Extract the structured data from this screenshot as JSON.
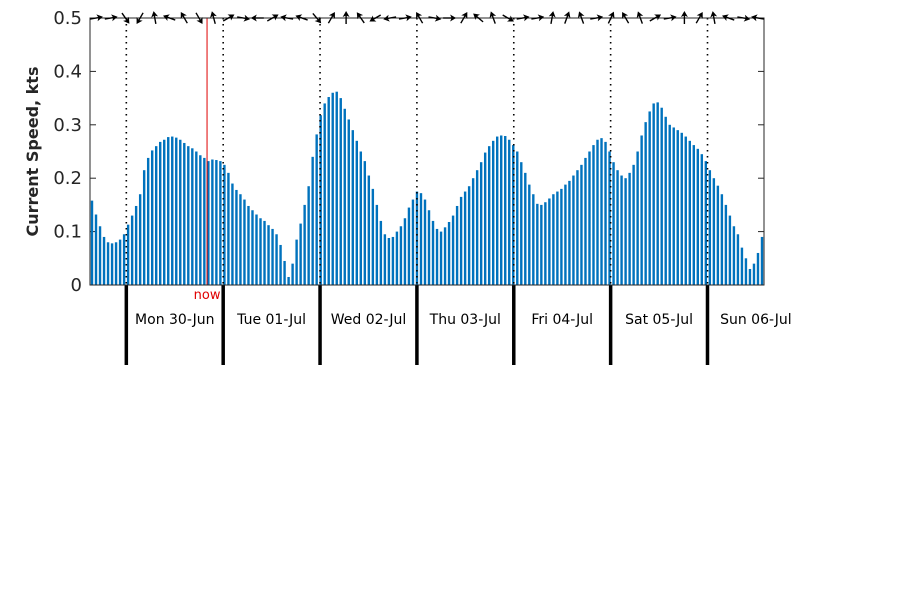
{
  "chart_data": {
    "type": "bar",
    "ylabel": "Current Speed, kts",
    "ylim": [
      0,
      0.5
    ],
    "yticks": [
      "0",
      "0.1",
      "0.2",
      "0.3",
      "0.4",
      "0.5"
    ],
    "ytick_values": [
      0,
      0.1,
      0.2,
      0.3,
      0.4,
      0.5
    ],
    "x_range_hours": [
      -9,
      158
    ],
    "midnights_hours": [
      0,
      24,
      48,
      72,
      96,
      120,
      144
    ],
    "days": [
      "Mon 30-Jun",
      "Tue 01-Jul",
      "Wed 02-Jul",
      "Thu 03-Jul",
      "Fri 04-Jul",
      "Sat 05-Jul",
      "Sun 06-Jul"
    ],
    "now_label": "now",
    "now_hour": 20,
    "series": [
      {
        "values": [
          0.158,
          0.132,
          0.11,
          0.09,
          0.08,
          0.078,
          0.08,
          0.085,
          0.095,
          0.113,
          0.13,
          0.148,
          0.17,
          0.215,
          0.238,
          0.252,
          0.26,
          0.268,
          0.272,
          0.277,
          0.278,
          0.276,
          0.272,
          0.266,
          0.26,
          0.256,
          0.25,
          0.243,
          0.238,
          0.232,
          0.235,
          0.234,
          0.232,
          0.225,
          0.21,
          0.19,
          0.178,
          0.17,
          0.16,
          0.148,
          0.14,
          0.132,
          0.125,
          0.12,
          0.112,
          0.105,
          0.095,
          0.075,
          0.045,
          0.015,
          0.04,
          0.085,
          0.115,
          0.15,
          0.185,
          0.24,
          0.282,
          0.318,
          0.34,
          0.352,
          0.36,
          0.362,
          0.35,
          0.33,
          0.31,
          0.29,
          0.27,
          0.25,
          0.232,
          0.205,
          0.18,
          0.15,
          0.12,
          0.095,
          0.088,
          0.09,
          0.1,
          0.11,
          0.125,
          0.145,
          0.16,
          0.175,
          0.172,
          0.16,
          0.14,
          0.12,
          0.105,
          0.1,
          0.108,
          0.118,
          0.13,
          0.148,
          0.165,
          0.175,
          0.185,
          0.2,
          0.215,
          0.23,
          0.248,
          0.26,
          0.27,
          0.278,
          0.28,
          0.279,
          0.272,
          0.262,
          0.25,
          0.23,
          0.21,
          0.188,
          0.17,
          0.152,
          0.15,
          0.155,
          0.162,
          0.17,
          0.175,
          0.18,
          0.188,
          0.195,
          0.205,
          0.215,
          0.225,
          0.238,
          0.25,
          0.262,
          0.272,
          0.275,
          0.268,
          0.25,
          0.23,
          0.215,
          0.205,
          0.2,
          0.21,
          0.225,
          0.25,
          0.28,
          0.305,
          0.325,
          0.34,
          0.342,
          0.332,
          0.315,
          0.3,
          0.295,
          0.29,
          0.285,
          0.278,
          0.27,
          0.262,
          0.255,
          0.245,
          0.232,
          0.215,
          0.2,
          0.186,
          0.17,
          0.15,
          0.13,
          0.11,
          0.095,
          0.07,
          0.05,
          0.03,
          0.04,
          0.06,
          0.09
        ]
      }
    ],
    "bar_color": "#0072bd",
    "now_color": "#e00000",
    "arrow_color": "#000000",
    "direction_arrow_angles_deg": [
      350,
      350,
      55,
      120,
      260,
      200,
      240,
      60,
      255,
      330,
      10,
      180,
      330,
      190,
      200,
      50,
      300,
      270,
      235,
      150,
      170,
      350,
      240,
      10,
      0,
      300,
      220,
      250,
      30,
      350,
      350,
      280,
      290,
      250,
      350,
      295,
      240,
      250,
      330,
      350,
      270,
      300,
      260,
      200,
      10,
      190
    ]
  }
}
